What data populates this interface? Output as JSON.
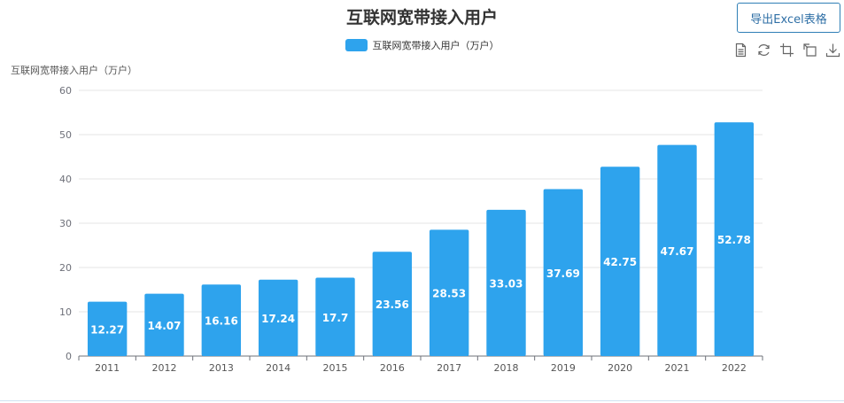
{
  "export_button": {
    "label": "导出Excel表格"
  },
  "toolbox": [
    {
      "name": "data-view-icon"
    },
    {
      "name": "refresh-icon"
    },
    {
      "name": "crop-zoom-icon"
    },
    {
      "name": "zoom-reset-icon"
    },
    {
      "name": "download-icon"
    }
  ],
  "colors": {
    "bar": "#2ea3ed",
    "axis": "#6e7079",
    "grid": "#e6e6e6"
  },
  "chart_data": {
    "type": "bar",
    "title": "互联网宽带接入用户",
    "ylabel": "互联网宽带接入用户（万户）",
    "legend": [
      "互联网宽带接入用户（万户）"
    ],
    "legend_position": "top-center",
    "categories": [
      "2011",
      "2012",
      "2013",
      "2014",
      "2015",
      "2016",
      "2017",
      "2018",
      "2019",
      "2020",
      "2021",
      "2022"
    ],
    "series": [
      {
        "name": "互联网宽带接入用户（万户）",
        "values": [
          12.27,
          14.07,
          16.16,
          17.24,
          17.7,
          23.56,
          28.53,
          33.03,
          37.69,
          42.75,
          47.67,
          52.78
        ]
      }
    ],
    "ylim": [
      0,
      60
    ],
    "yticks": [
      0,
      10,
      20,
      30,
      40,
      50,
      60
    ],
    "grid": true
  }
}
